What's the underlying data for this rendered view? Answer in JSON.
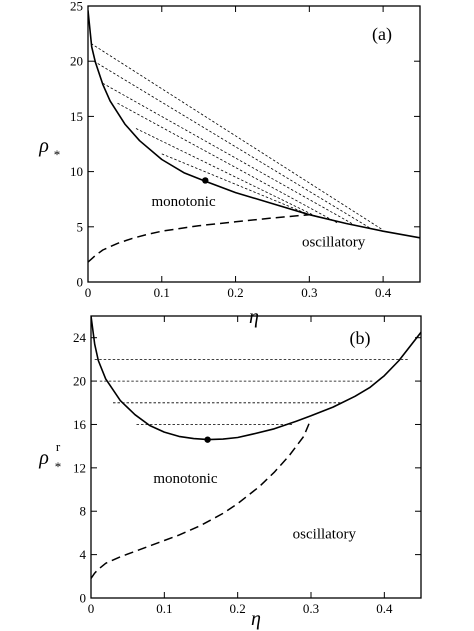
{
  "chart_data": [
    {
      "type": "line",
      "panel_label": "(a)",
      "xlabel": "η",
      "ylabel": "ρ",
      "ylabel_sub": "*",
      "ylabel_sup": "",
      "xlim": [
        0,
        0.45
      ],
      "ylim": [
        0,
        25
      ],
      "xticks": [
        0,
        0.1,
        0.2,
        0.3,
        0.4
      ],
      "xtick_labels": [
        "0",
        "0.1",
        "0.2",
        "0.3",
        "0.4"
      ],
      "yticks": [
        0,
        5,
        10,
        15,
        20,
        25
      ],
      "ytick_labels": [
        "0",
        "5",
        "10",
        "15",
        "20",
        "25"
      ],
      "region_labels": [
        {
          "text": "monotonic",
          "x": 0.086,
          "y": 6.9
        },
        {
          "text": "oscillatory",
          "x": 0.29,
          "y": 3.2
        }
      ],
      "series": [
        {
          "style": "solid",
          "x": [
            0.0,
            0.005,
            0.01,
            0.02,
            0.03,
            0.05,
            0.07,
            0.1,
            0.13,
            0.16,
            0.2,
            0.25,
            0.3,
            0.35,
            0.4,
            0.45
          ],
          "y": [
            24.6,
            21.3,
            19.9,
            17.9,
            16.4,
            14.3,
            12.8,
            11.1,
            9.9,
            9.1,
            8.1,
            7.1,
            6.1,
            5.3,
            4.6,
            4.0
          ]
        },
        {
          "style": "dashed",
          "x": [
            0.0,
            0.005,
            0.01,
            0.02,
            0.04,
            0.06,
            0.08,
            0.1,
            0.15,
            0.2,
            0.25,
            0.3
          ],
          "y": [
            1.8,
            2.1,
            2.4,
            2.9,
            3.5,
            3.95,
            4.3,
            4.6,
            5.1,
            5.45,
            5.8,
            6.1
          ]
        },
        {
          "style": "dotted",
          "x": [
            0.004,
            0.4
          ],
          "y": [
            21.6,
            4.7
          ]
        },
        {
          "style": "dotted",
          "x": [
            0.008,
            0.382
          ],
          "y": [
            20.0,
            4.9
          ]
        },
        {
          "style": "dotted",
          "x": [
            0.02,
            0.363
          ],
          "y": [
            18.0,
            5.1
          ]
        },
        {
          "style": "dotted",
          "x": [
            0.04,
            0.338
          ],
          "y": [
            16.2,
            5.35
          ]
        },
        {
          "style": "dotted",
          "x": [
            0.065,
            0.312
          ],
          "y": [
            13.9,
            5.85
          ]
        },
        {
          "style": "dotted",
          "x": [
            0.1,
            0.3
          ],
          "y": [
            11.6,
            6.1
          ]
        }
      ],
      "markers": [
        {
          "x": 0.159,
          "y": 9.2
        }
      ]
    },
    {
      "type": "line",
      "panel_label": "(b)",
      "xlabel": "η",
      "ylabel": "ρ",
      "ylabel_sub": "*",
      "ylabel_sup": "r",
      "xlim": [
        0,
        0.45
      ],
      "ylim": [
        0,
        26
      ],
      "xticks": [
        0,
        0.1,
        0.2,
        0.3,
        0.4
      ],
      "xtick_labels": [
        "0",
        "0.1",
        "0.2",
        "0.3",
        "0.4"
      ],
      "yticks": [
        0,
        4,
        8,
        12,
        16,
        20,
        24
      ],
      "ytick_labels": [
        "0",
        "4",
        "8",
        "12",
        "16",
        "20",
        "24"
      ],
      "region_labels": [
        {
          "text": "monotonic",
          "x": 0.085,
          "y": 10.6
        },
        {
          "text": "oscillatory",
          "x": 0.275,
          "y": 5.5
        }
      ],
      "series": [
        {
          "style": "solid",
          "x": [
            0.0,
            0.005,
            0.01,
            0.02,
            0.04,
            0.06,
            0.08,
            0.1,
            0.12,
            0.14,
            0.16,
            0.18,
            0.2,
            0.22,
            0.25,
            0.28,
            0.3,
            0.33,
            0.36,
            0.38,
            0.4,
            0.42,
            0.45
          ],
          "y": [
            26.0,
            23.4,
            21.9,
            20.2,
            18.2,
            16.9,
            15.9,
            15.3,
            14.9,
            14.7,
            14.6,
            14.65,
            14.8,
            15.1,
            15.6,
            16.3,
            16.8,
            17.6,
            18.6,
            19.4,
            20.5,
            21.9,
            24.5
          ]
        },
        {
          "style": "dashed",
          "x": [
            0.0,
            0.005,
            0.01,
            0.02,
            0.04,
            0.06,
            0.08,
            0.1,
            0.12,
            0.15,
            0.18,
            0.2,
            0.23,
            0.25,
            0.27,
            0.29,
            0.3
          ],
          "y": [
            1.8,
            2.3,
            2.65,
            3.2,
            3.8,
            4.3,
            4.8,
            5.3,
            5.8,
            6.7,
            7.8,
            8.7,
            10.3,
            11.6,
            13.1,
            14.9,
            16.5
          ]
        },
        {
          "style": "dotted",
          "x": [
            0.005,
            0.432
          ],
          "y": [
            22.0,
            22.0
          ]
        },
        {
          "style": "dotted",
          "x": [
            0.012,
            0.386
          ],
          "y": [
            20.0,
            20.0
          ]
        },
        {
          "style": "dotted",
          "x": [
            0.03,
            0.34
          ],
          "y": [
            18.0,
            18.0
          ]
        },
        {
          "style": "dotted",
          "x": [
            0.062,
            0.275
          ],
          "y": [
            16.0,
            16.0
          ]
        }
      ],
      "markers": [
        {
          "x": 0.159,
          "y": 14.6
        }
      ]
    }
  ]
}
